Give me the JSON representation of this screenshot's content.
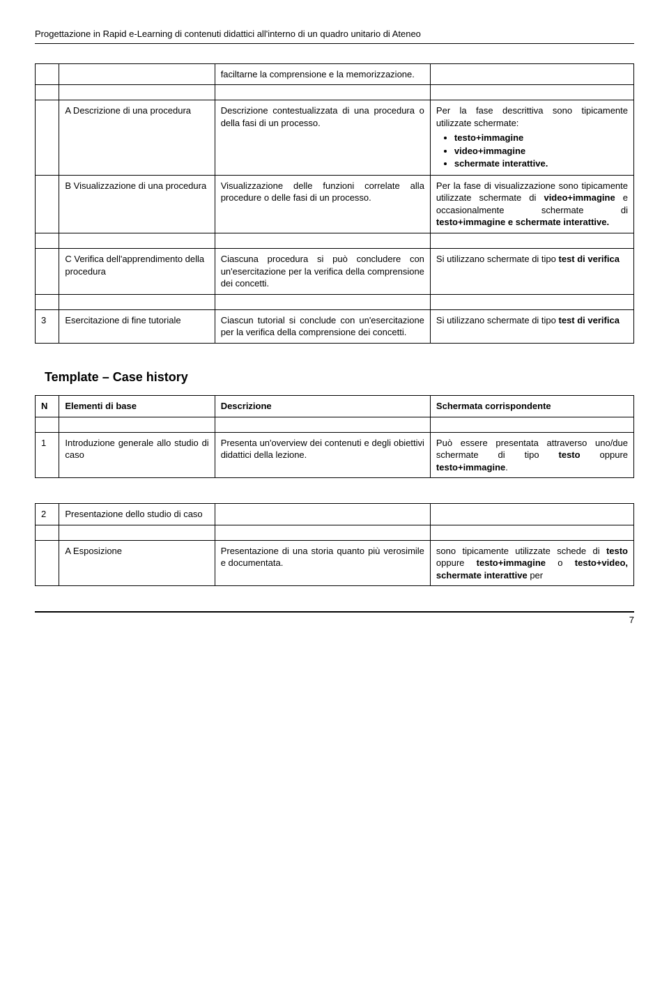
{
  "header": {
    "title": "Progettazione in Rapid e-Learning di contenuti didattici all'interno di un quadro unitario di Ateneo"
  },
  "table1": {
    "rows": [
      {
        "n": "",
        "a": "",
        "b": "faciltarne la comprensione e la memorizzazione.",
        "c": ""
      },
      {
        "n": "",
        "a": "A Descrizione di una procedura",
        "b": "Descrizione contestualizzata di una procedura o della fasi di un processo.",
        "c_intro": "Per la fase descrittiva sono tipicamente utilizzate schermate:",
        "c_bullets": [
          "testo+immagine",
          "video+immagine",
          "schermate interattive."
        ]
      },
      {
        "n": "",
        "a": "B Visualizzazione di una procedura",
        "b": "Visualizzazione delle funzioni correlate alla procedure o delle fasi di un processo.",
        "c_html": "Per la fase di visualizzazione sono tipicamente utilizzate schermate di <b>video+immagine</b> e occasionalmente schermate di <b>testo+immagine e schermate interattive.</b>"
      },
      {
        "n": "",
        "a": "C Verifica dell'apprendimento della procedura",
        "b": "Ciascuna procedura si può concludere con un'esercitazione per la verifica della comprensione dei concetti.",
        "c_html": "Si utilizzano schermate di tipo <b>test di verifica</b>"
      },
      {
        "n": "3",
        "a": "Esercitazione di fine tutoriale",
        "b": "Ciascun tutorial si conclude con un'esercitazione per la verifica della comprensione dei concetti.",
        "c_html": "Si utilizzano schermate di tipo <b>test di verifica</b>"
      }
    ]
  },
  "section": {
    "title": "Template – Case history"
  },
  "table2": {
    "headers": {
      "n": "N",
      "a": "Elementi di base",
      "b": "Descrizione",
      "c": "Schermata corrispondente"
    },
    "rows": [
      {
        "n": "1",
        "a": "Introduzione generale allo studio di caso",
        "b": "Presenta un'overview dei contenuti e degli obiettivi didattici della lezione.",
        "c_html": "Può essere presentata attraverso uno/due schermate di tipo <b>testo</b> oppure <b>testo+immagine</b>."
      }
    ]
  },
  "table3": {
    "rows": [
      {
        "n": "2",
        "a": "Presentazione dello studio di caso",
        "b": "",
        "c": ""
      },
      {
        "n": "",
        "a": "A Esposizione",
        "b": "Presentazione di una storia quanto più verosimile e documentata.",
        "c_html": "sono tipicamente utilizzate schede di <b>testo</b> oppure <b>testo+immagine</b> o <b>testo+video, schermate interattive</b> per"
      }
    ]
  },
  "footer": {
    "page": "7"
  }
}
